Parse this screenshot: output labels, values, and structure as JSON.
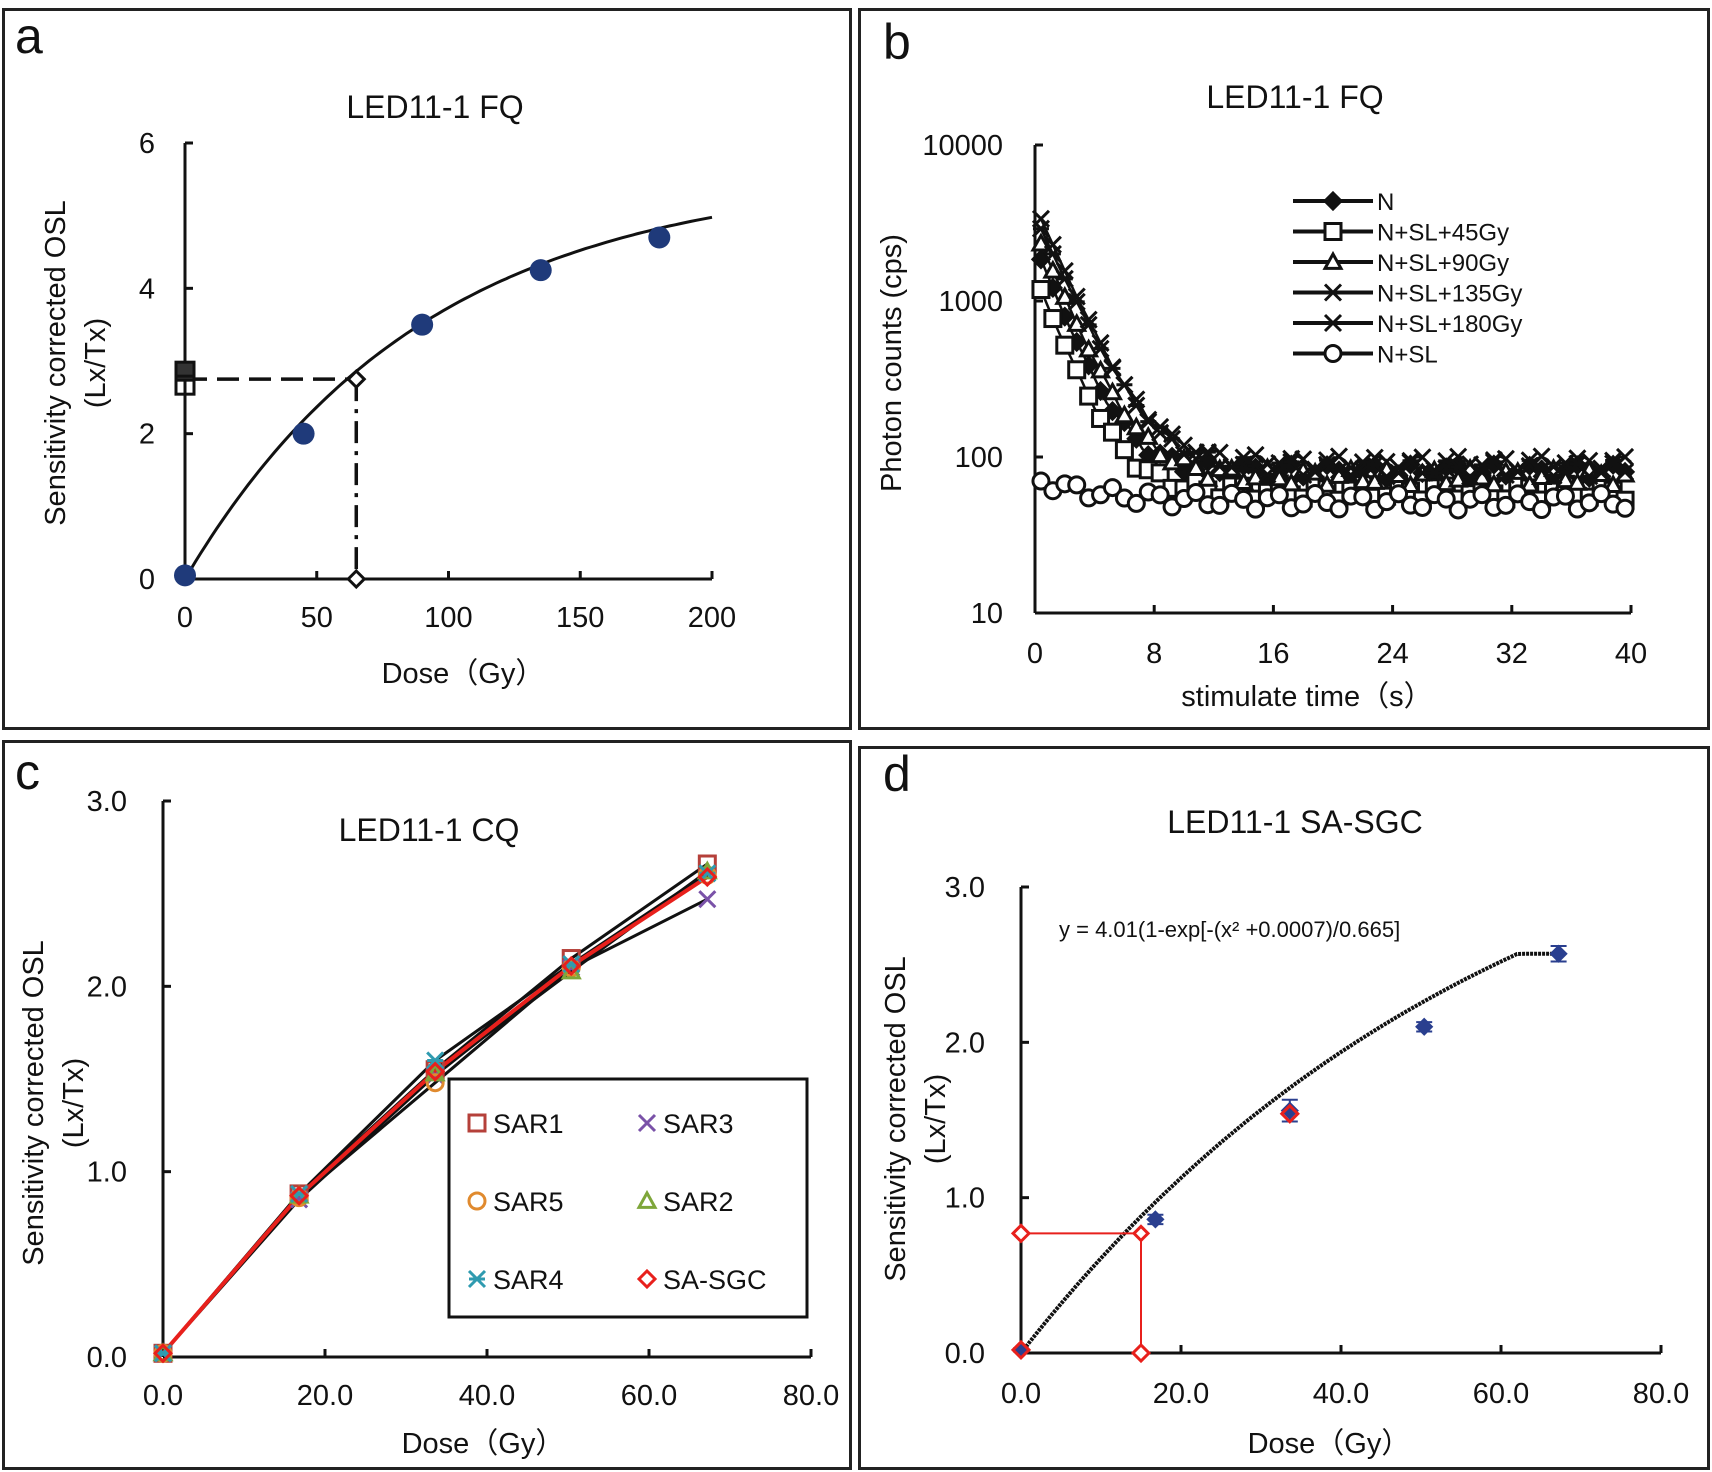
{
  "panels": {
    "a": {
      "label": "a"
    },
    "b": {
      "label": "b"
    },
    "c": {
      "label": "c"
    },
    "d": {
      "label": "d"
    }
  },
  "chart_data": [
    {
      "id": "a",
      "type": "scatter",
      "title": "LED11-1  FQ",
      "xlabel": "Dose（Gy）",
      "ylabel": "Sensitivity corrected OSL",
      "ylabel2": "(Lx/Tx)",
      "xlim": [
        0,
        200
      ],
      "ylim": [
        0,
        6
      ],
      "xticks": [
        "0",
        "50",
        "100",
        "150",
        "200"
      ],
      "yticks": [
        "0",
        "2",
        "4",
        "6"
      ],
      "points": [
        {
          "x": 0,
          "y": 0.05
        },
        {
          "x": 45,
          "y": 2.0
        },
        {
          "x": 90,
          "y": 3.5
        },
        {
          "x": 135,
          "y": 4.25
        },
        {
          "x": 180,
          "y": 4.7
        }
      ],
      "natural": {
        "x": 0,
        "y": 2.75
      },
      "de": {
        "x": 65,
        "y": 2.75
      },
      "fit": {
        "a": 5.6,
        "d0": 91
      },
      "colors": {
        "point": "#1f3a7a",
        "line": "#111111"
      }
    },
    {
      "id": "b",
      "type": "line",
      "title": "LED11-1  FQ",
      "xlabel": "stimulate time（s）",
      "ylabel": "Photon counts (cps)",
      "xlim": [
        0,
        40
      ],
      "ylim": [
        10,
        10000
      ],
      "yscale": "log",
      "xticks": [
        "0",
        "8",
        "16",
        "24",
        "32",
        "40"
      ],
      "yticks": [
        "10",
        "100",
        "1000",
        "10000"
      ],
      "legend": [
        "N",
        "N+SL+45Gy",
        "N+SL+90Gy",
        "N+SL+135Gy",
        "N+SL+180Gy",
        "N+SL"
      ],
      "series": [
        {
          "name": "N",
          "marker": "diamond",
          "amp": 2200,
          "tau": 1.8,
          "base": 80
        },
        {
          "name": "N+SL+45Gy",
          "marker": "square",
          "amp": 1400,
          "tau": 1.8,
          "base": 60
        },
        {
          "name": "N+SL+90Gy",
          "marker": "triangle",
          "amp": 2800,
          "tau": 1.9,
          "base": 75
        },
        {
          "name": "N+SL+135Gy",
          "marker": "x",
          "amp": 4000,
          "tau": 2.0,
          "base": 90
        },
        {
          "name": "N+SL+180Gy",
          "marker": "asterisk",
          "amp": 3400,
          "tau": 2.1,
          "base": 85
        },
        {
          "name": "N+SL",
          "marker": "circle",
          "amp": 20,
          "tau": 4,
          "base": 52
        }
      ]
    },
    {
      "id": "c",
      "type": "scatter",
      "title": "LED11-1 CQ",
      "xlabel": "Dose（Gy）",
      "ylabel": "Sensitivity corrected OSL",
      "ylabel2": "(Lx/Tx)",
      "xlim": [
        0,
        80
      ],
      "ylim": [
        0,
        3
      ],
      "xticks": [
        "0.0",
        "20.0",
        "40.0",
        "60.0",
        "80.0"
      ],
      "yticks": [
        "0.0",
        "1.0",
        "2.0",
        "3.0"
      ],
      "x": [
        0,
        16.8,
        33.6,
        50.4,
        67.2
      ],
      "series": [
        {
          "name": "SAR1",
          "marker": "square",
          "color": "#b5403a",
          "values": [
            0.02,
            0.88,
            1.55,
            2.15,
            2.66
          ]
        },
        {
          "name": "SAR3",
          "marker": "x",
          "color": "#7a52a8",
          "values": [
            0.02,
            0.85,
            1.52,
            2.1,
            2.47
          ]
        },
        {
          "name": "SAR5",
          "marker": "circle",
          "color": "#e08a2e",
          "values": [
            0.02,
            0.86,
            1.48,
            2.1,
            2.6
          ]
        },
        {
          "name": "SAR2",
          "marker": "triangle",
          "color": "#7ea63a",
          "values": [
            0.02,
            0.87,
            1.53,
            2.08,
            2.62
          ]
        },
        {
          "name": "SAR4",
          "marker": "asterisk",
          "color": "#2f9bb0",
          "values": [
            0.02,
            0.88,
            1.6,
            2.12,
            2.61
          ]
        },
        {
          "name": "SA-SGC",
          "marker": "diamond",
          "color": "#e8201c",
          "values": [
            0.02,
            0.87,
            1.54,
            2.11,
            2.59
          ]
        }
      ]
    },
    {
      "id": "d",
      "type": "scatter",
      "title": "LED11-1 SA-SGC",
      "equation": "y = 4.01(1-exp[-(x²  +0.0007)/0.665]",
      "xlabel": "Dose（Gy）",
      "ylabel": "Sensitivity corrected OSL",
      "ylabel2": "(Lx/Tx)",
      "xlim": [
        0,
        80
      ],
      "ylim": [
        0,
        3
      ],
      "xticks": [
        "0.0",
        "20.0",
        "40.0",
        "60.0",
        "80.0"
      ],
      "yticks": [
        "0.0",
        "1.0",
        "2.0",
        "3.0"
      ],
      "points": [
        {
          "x": 0,
          "y": 0.02,
          "err": 0.01
        },
        {
          "x": 16.8,
          "y": 0.86,
          "err": 0.03
        },
        {
          "x": 33.6,
          "y": 1.56,
          "err": 0.07
        },
        {
          "x": 50.4,
          "y": 2.1,
          "err": 0.03
        },
        {
          "x": 67.2,
          "y": 2.57,
          "err": 0.05
        }
      ],
      "sgc_points": [
        {
          "x": 0,
          "y": 0.02
        },
        {
          "x": 33.6,
          "y": 1.54
        }
      ],
      "natural": {
        "x": 0,
        "y": 0.77
      },
      "de": {
        "x": 15,
        "y": 0.77
      },
      "colors": {
        "point": "#2a3f8f",
        "sgc": "#e8201c",
        "guide": "#e8201c"
      }
    }
  ]
}
